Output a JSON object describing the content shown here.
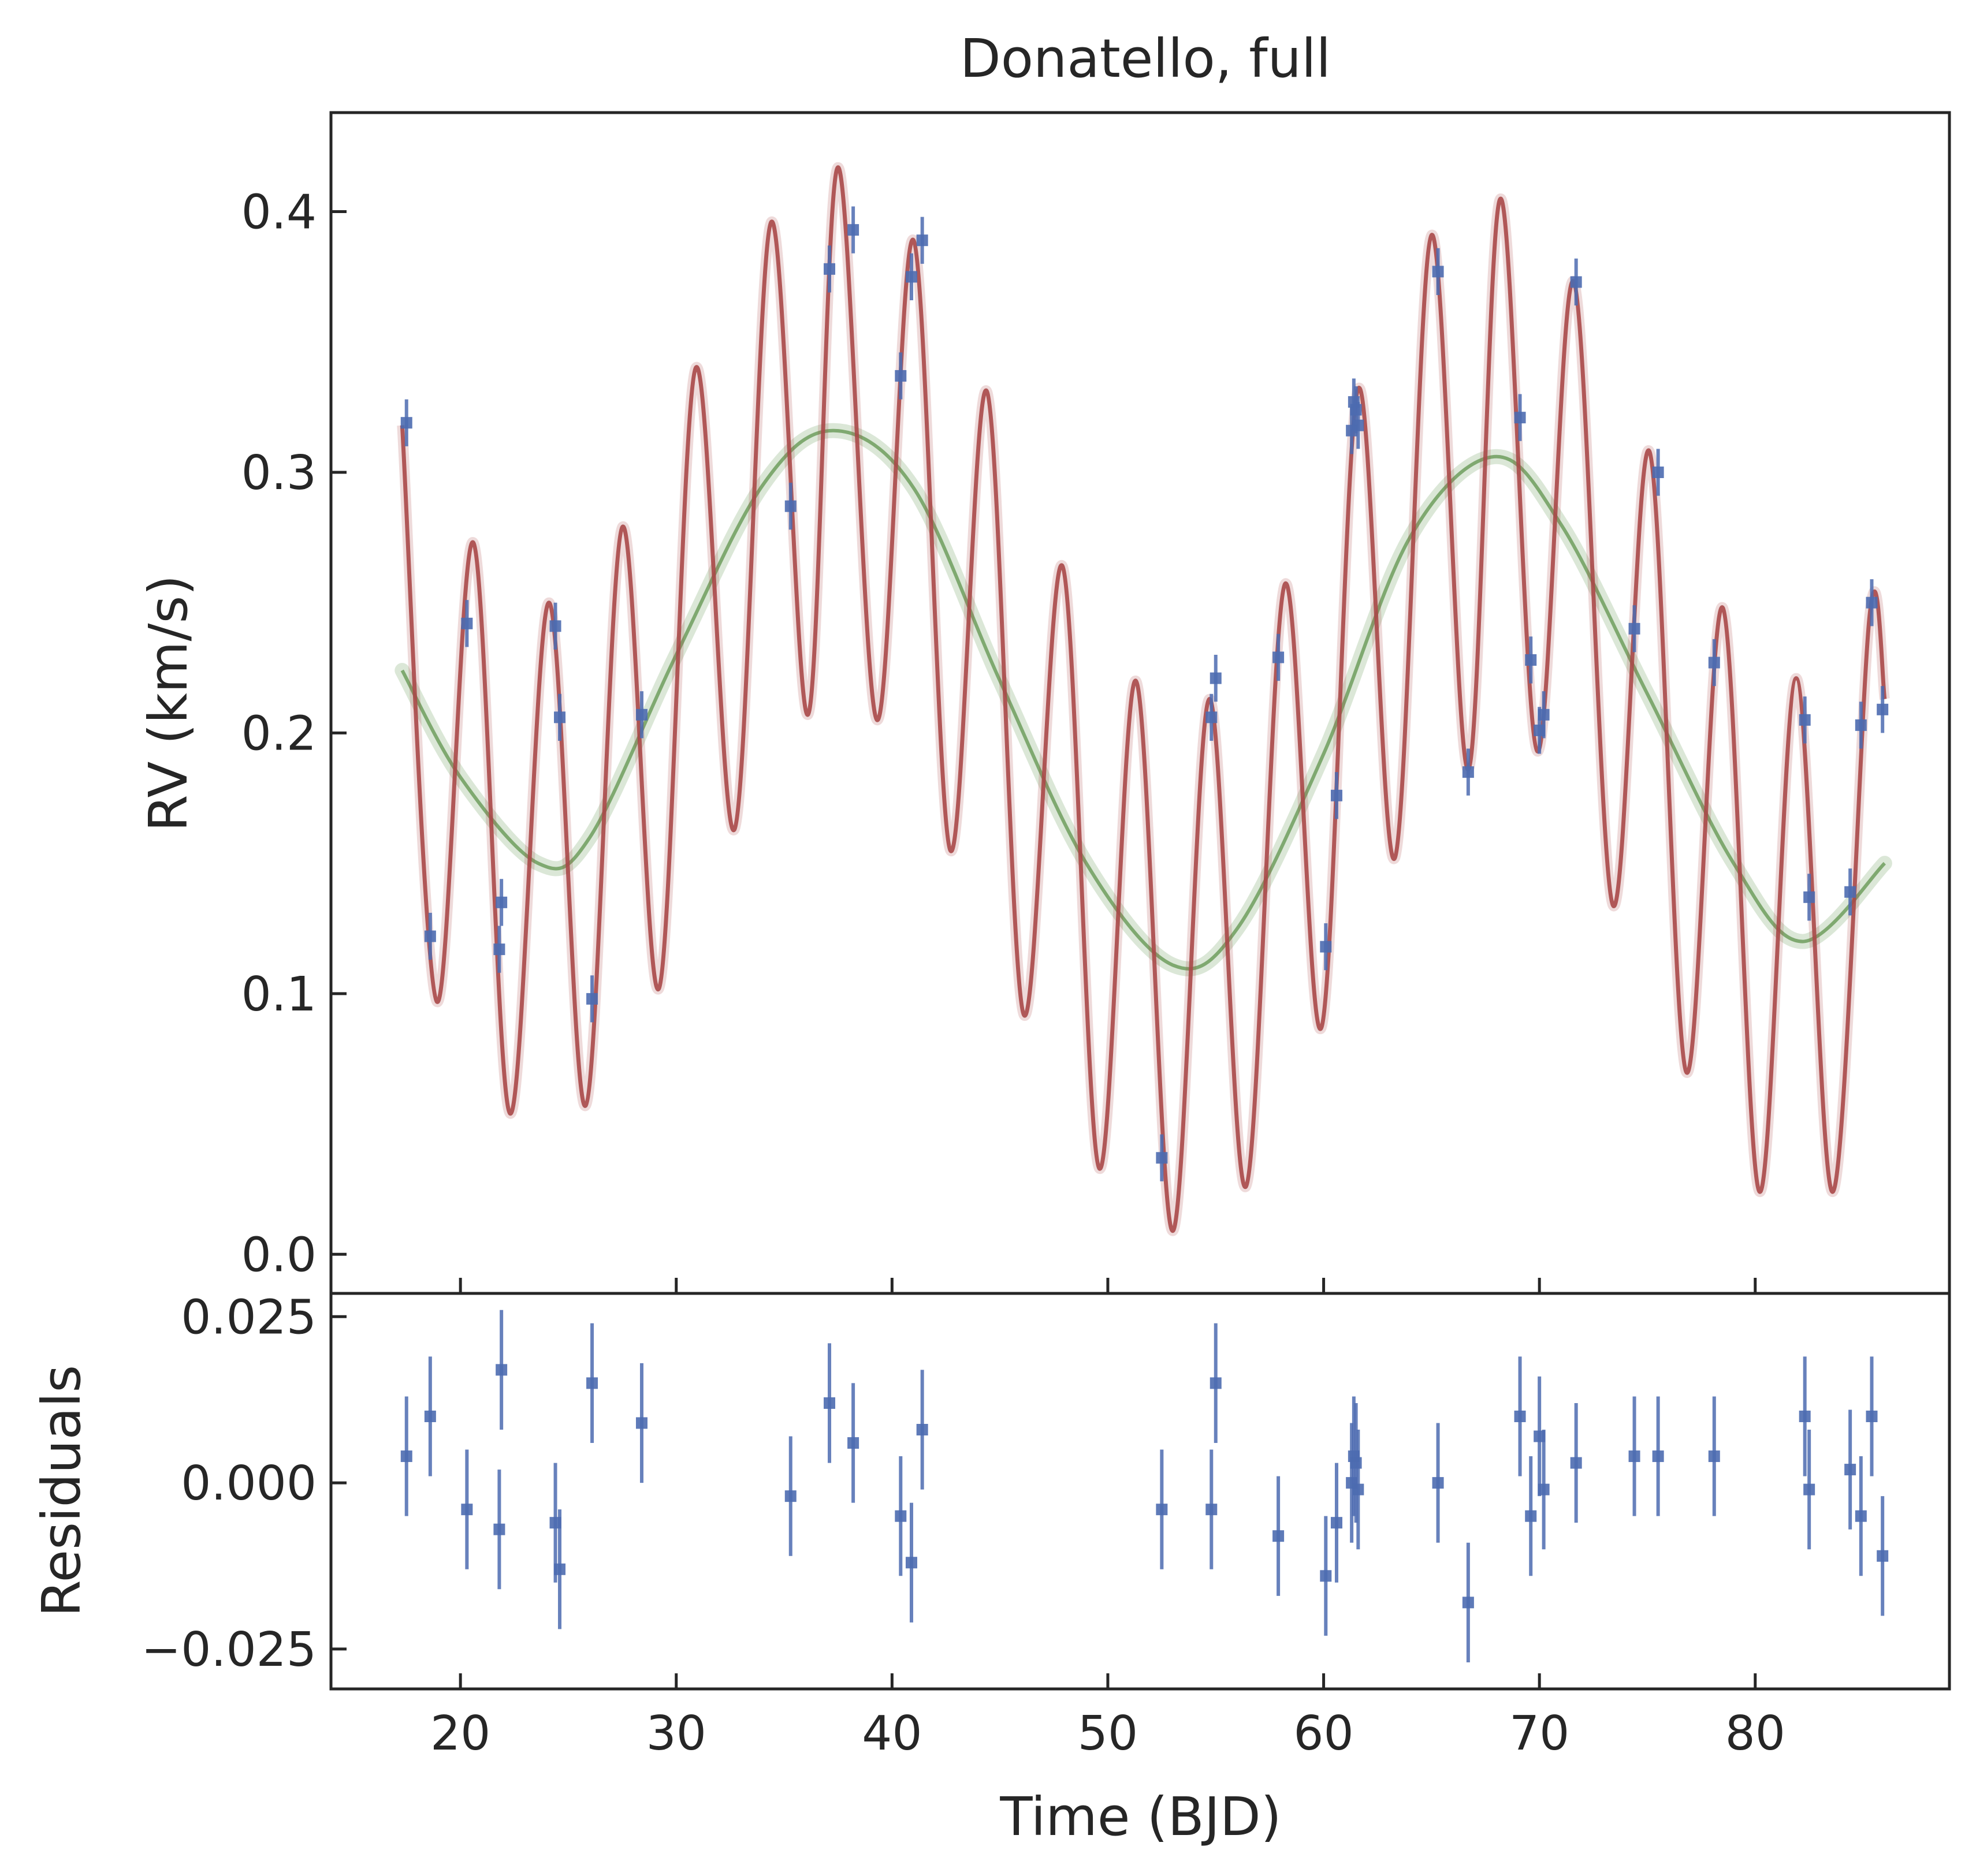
{
  "figure": {
    "title": "Donatello, full",
    "xlabel": "Time (BJD)",
    "top_ylabel": "RV (km/s)",
    "bottom_ylabel": "Residuals"
  },
  "chart_data": [
    {
      "type": "scatter",
      "panel": "rv",
      "title": "Donatello, full",
      "xlabel": "Time (BJD)",
      "ylabel": "RV (km/s)",
      "xlim": [
        14,
        89
      ],
      "ylim": [
        -0.015,
        0.438
      ],
      "xticks": [
        20,
        30,
        40,
        50,
        60,
        70,
        80
      ],
      "yticks": [
        0.0,
        0.1,
        0.2,
        0.3,
        0.4
      ],
      "ytick_labels": [
        "0.0",
        "0.1",
        "0.2",
        "0.3",
        "0.4"
      ],
      "grid": false,
      "colors": {
        "data": "#4c6bb0",
        "full_model": "#a84848",
        "long_period_model": "#6e9e5e"
      },
      "series": [
        {
          "kind": "errorbar",
          "x": [
            17.5,
            18.6,
            20.3,
            21.8,
            21.9,
            24.4,
            24.6,
            26.1,
            28.4,
            35.3,
            37.1,
            38.2,
            40.4,
            40.9,
            41.4,
            52.5,
            54.8,
            55.0,
            57.9,
            60.1,
            60.6,
            61.3,
            61.4,
            61.5,
            61.6,
            65.3,
            66.7,
            69.1,
            69.6,
            70.0,
            70.2,
            71.7,
            74.4,
            75.5,
            78.1,
            82.3,
            82.5,
            84.4,
            84.9,
            85.4,
            85.9
          ],
          "y": [
            0.319,
            0.122,
            0.242,
            0.117,
            0.135,
            0.241,
            0.206,
            0.098,
            0.207,
            0.287,
            0.378,
            0.393,
            0.337,
            0.375,
            0.389,
            0.037,
            0.206,
            0.221,
            0.229,
            0.118,
            0.176,
            0.316,
            0.327,
            0.324,
            0.318,
            0.377,
            0.185,
            0.321,
            0.228,
            0.201,
            0.207,
            0.373,
            0.24,
            0.3,
            0.227,
            0.205,
            0.137,
            0.139,
            0.203,
            0.25,
            0.209
          ],
          "yerr": 0.009
        },
        {
          "kind": "line",
          "model": "full",
          "x": [
            17.3,
            18.9,
            20.6,
            22.3,
            24.1,
            25.8,
            27.5,
            29.2,
            30.9,
            32.7,
            34.4,
            36.1,
            37.5,
            39.3,
            41.0,
            42.7,
            44.4,
            46.1,
            47.9,
            49.6,
            51.3,
            53.0,
            54.7,
            56.4,
            58.2,
            59.9,
            61.6,
            63.3,
            65.0,
            66.7,
            68.2,
            69.9,
            71.6,
            73.4,
            75.1,
            76.8,
            78.5,
            80.2,
            81.9,
            83.6,
            85.3,
            86.0
          ],
          "y": [
            0.318,
            0.097,
            0.273,
            0.054,
            0.25,
            0.057,
            0.279,
            0.102,
            0.34,
            0.163,
            0.396,
            0.207,
            0.417,
            0.205,
            0.389,
            0.155,
            0.331,
            0.092,
            0.264,
            0.033,
            0.22,
            0.009,
            0.213,
            0.026,
            0.257,
            0.087,
            0.332,
            0.152,
            0.391,
            0.186,
            0.405,
            0.193,
            0.373,
            0.134,
            0.308,
            0.07,
            0.248,
            0.024,
            0.221,
            0.024,
            0.245,
            0.213
          ]
        },
        {
          "kind": "line",
          "model": "long-period",
          "x": [
            17.3,
            20.0,
            23.6,
            26.0,
            30.0,
            34.0,
            37.3,
            41.0,
            45.0,
            49.0,
            53.0,
            56.0,
            60.0,
            64.0,
            67.9,
            71.0,
            75.0,
            79.0,
            82.2,
            86.0
          ],
          "y": [
            0.224,
            0.183,
            0.15,
            0.16,
            0.23,
            0.295,
            0.316,
            0.294,
            0.22,
            0.15,
            0.111,
            0.125,
            0.192,
            0.275,
            0.306,
            0.28,
            0.215,
            0.15,
            0.12,
            0.15
          ]
        }
      ]
    },
    {
      "type": "scatter",
      "panel": "residuals",
      "xlabel": "Time (BJD)",
      "ylabel": "Residuals",
      "xlim": [
        14,
        89
      ],
      "ylim": [
        -0.031,
        0.0285
      ],
      "xticks": [
        20,
        30,
        40,
        50,
        60,
        70,
        80
      ],
      "xtick_labels": [
        "20",
        "30",
        "40",
        "50",
        "60",
        "70",
        "80"
      ],
      "yticks": [
        0.025,
        0.0,
        -0.025
      ],
      "ytick_labels": [
        "0.025",
        "0.000",
        "−0.025"
      ],
      "grid": false,
      "series": [
        {
          "kind": "errorbar",
          "x": [
            17.5,
            18.6,
            20.3,
            21.8,
            21.9,
            24.4,
            24.6,
            26.1,
            28.4,
            35.3,
            37.1,
            38.2,
            40.4,
            40.9,
            41.4,
            52.5,
            54.8,
            55.0,
            57.9,
            60.1,
            60.6,
            61.3,
            61.4,
            61.5,
            61.6,
            65.3,
            66.7,
            69.1,
            69.6,
            70.0,
            70.2,
            71.7,
            74.4,
            75.5,
            78.1,
            82.3,
            82.5,
            84.4,
            84.9,
            85.4,
            85.9
          ],
          "y": [
            0.004,
            0.01,
            -0.004,
            -0.007,
            0.017,
            -0.006,
            -0.013,
            0.015,
            0.009,
            -0.002,
            0.012,
            0.006,
            -0.005,
            -0.012,
            0.008,
            -0.004,
            -0.004,
            0.015,
            -0.008,
            -0.014,
            -0.006,
            0.0,
            0.004,
            0.003,
            -0.001,
            0.0,
            -0.018,
            0.01,
            -0.005,
            0.007,
            -0.001,
            0.003,
            0.004,
            0.004,
            0.004,
            0.01,
            -0.001,
            0.002,
            -0.005,
            0.01,
            -0.011
          ],
          "yerr": 0.009
        }
      ]
    }
  ]
}
